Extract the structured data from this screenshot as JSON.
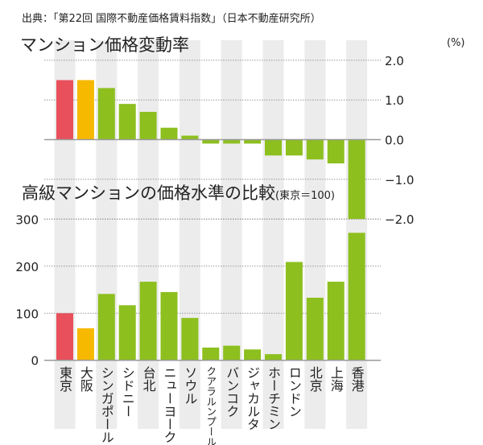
{
  "source": "出典：「第22回 国際不動産価格賃料指数」（日本不動産研究所）",
  "chart_data": [
    {
      "type": "bar",
      "title": "マンション価格変動率",
      "unit": "(%)",
      "categories": [
        "東京",
        "大阪",
        "シンガポール",
        "シドニー",
        "台北",
        "ニューヨーク",
        "ソウル",
        "クアラルンプール",
        "バンコク",
        "ジャカルタ",
        "ホーチミン",
        "ロンドン",
        "北京",
        "上海",
        "香港"
      ],
      "values": [
        1.5,
        1.5,
        1.3,
        0.9,
        0.7,
        0.3,
        0.1,
        -0.1,
        -0.1,
        -0.1,
        -0.4,
        -0.4,
        -0.5,
        -0.6,
        -2.0
      ],
      "ylim": [
        -2.0,
        2.0
      ],
      "yticks": [
        "2.0",
        "1.0",
        "0.0",
        "−1.0",
        "−2.0"
      ],
      "ytick_values": [
        2,
        1,
        0,
        -1,
        -2
      ],
      "axis_side": "right",
      "grid": true
    },
    {
      "type": "bar",
      "title": "高級マンションの価格水準の比較",
      "subtitle": "(東京＝100)",
      "categories": [
        "東京",
        "大阪",
        "シンガポール",
        "シドニー",
        "台北",
        "ニューヨーク",
        "ソウル",
        "クアラルンプール",
        "バンコク",
        "ジャカルタ",
        "ホーチミン",
        "ロンドン",
        "北京",
        "上海",
        "香港"
      ],
      "values": [
        100,
        68,
        141,
        117,
        167,
        145,
        90,
        27,
        31,
        23,
        13,
        209,
        133,
        167,
        271
      ],
      "ylim": [
        0,
        300
      ],
      "yticks": [
        "300",
        "200",
        "100",
        "0"
      ],
      "ytick_values": [
        300,
        200,
        100,
        0
      ],
      "axis_side": "left",
      "grid": true
    }
  ],
  "colors": {
    "tokyo": "#e8505b",
    "osaka": "#f7b900",
    "others": "#8dbf1f",
    "stripe": "#ececec",
    "grid": "#999999"
  }
}
